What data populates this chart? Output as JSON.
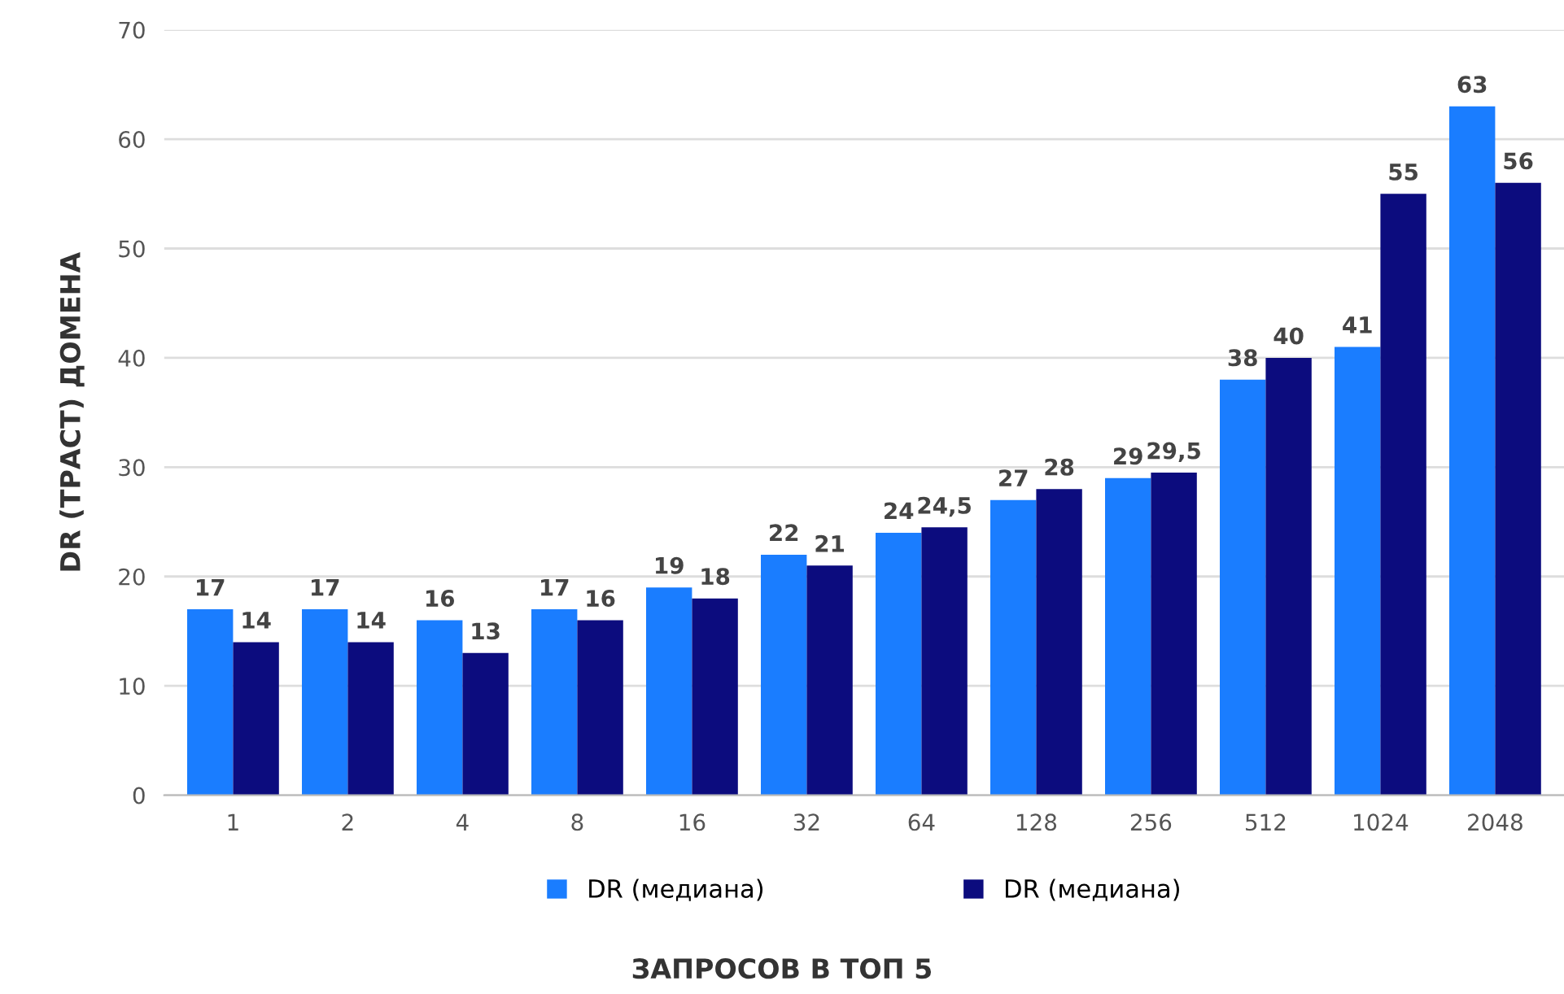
{
  "chart_data": {
    "type": "bar",
    "ylabel": "DR (ТРАСТ) ДОМЕНА",
    "xlabel": "ЗАПРОСОВ В ТОП 5",
    "categories": [
      "1",
      "2",
      "4",
      "8",
      "16",
      "32",
      "64",
      "128",
      "256",
      "512",
      "1024",
      "2048"
    ],
    "series": [
      {
        "name": "DR (медиана)",
        "color": "#1a7dff",
        "values": [
          17,
          17,
          16,
          17,
          19,
          22,
          24,
          27,
          29,
          38,
          41,
          63
        ],
        "value_labels": [
          "17",
          "17",
          "16",
          "17",
          "19",
          "22",
          "24",
          "27",
          "29",
          "38",
          "41",
          "63"
        ]
      },
      {
        "name": "DR (медиана)",
        "color": "#0c0c7e",
        "values": [
          14,
          14,
          13,
          16,
          18,
          21,
          24.5,
          28,
          29.5,
          40,
          55,
          56
        ],
        "value_labels": [
          "14",
          "14",
          "13",
          "16",
          "18",
          "21",
          "24,5",
          "28",
          "29,5",
          "40",
          "55",
          "56"
        ]
      }
    ],
    "ylim": [
      0,
      70
    ],
    "yticks": [
      0,
      10,
      20,
      30,
      40,
      50,
      60,
      70
    ],
    "grid": "y",
    "legend": "bottom"
  }
}
